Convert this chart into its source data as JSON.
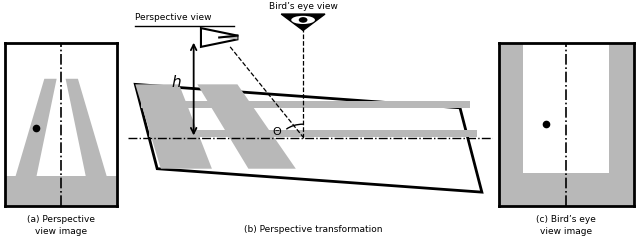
{
  "bg": "#ffffff",
  "gray": "#b8b8b8",
  "black": "#000000",
  "label_a": "(a) Perspective\nview image",
  "label_b": "(b) Perspective transformation",
  "label_c": "(c) Bird’s eye\nview image",
  "persp_label": "Perspective view",
  "bird_label": "Bird’s eye view",
  "h_label": "h",
  "theta_label": "Θ"
}
